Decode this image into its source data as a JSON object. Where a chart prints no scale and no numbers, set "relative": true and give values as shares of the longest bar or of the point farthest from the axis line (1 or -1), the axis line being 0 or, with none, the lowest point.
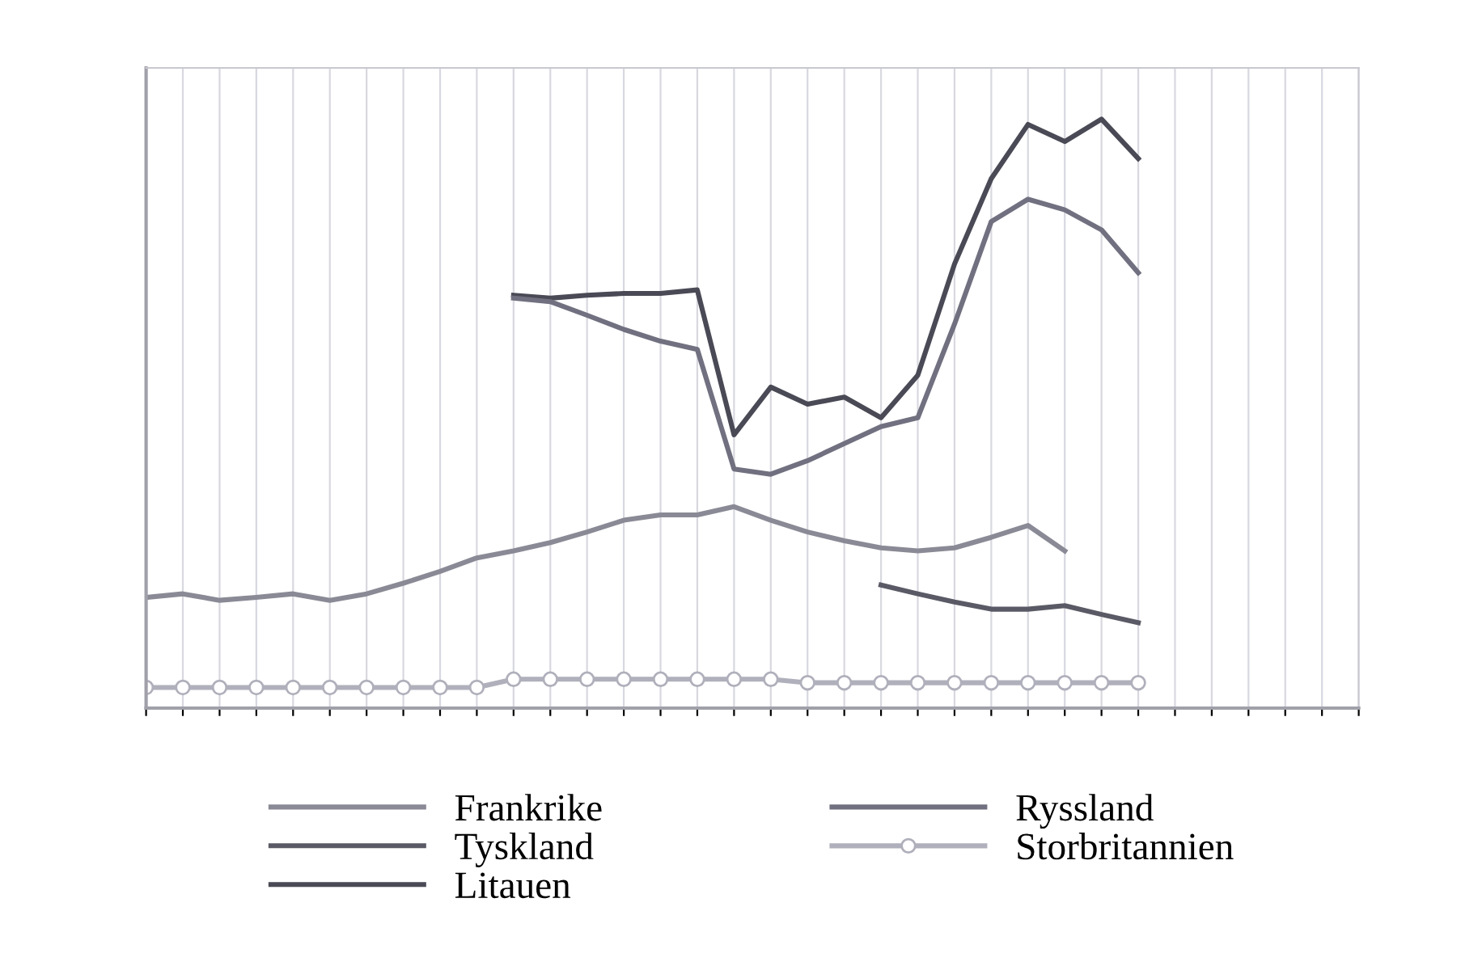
{
  "chart_data": {
    "type": "line",
    "relative": true,
    "grid": true,
    "legend": "bottom",
    "categories": [
      null,
      null,
      null,
      null,
      null,
      null,
      null,
      null,
      null,
      null,
      null,
      null,
      null,
      null,
      null,
      null,
      null,
      null,
      null,
      null,
      null,
      null,
      null,
      null,
      null,
      null,
      null,
      null,
      null,
      null,
      null,
      null,
      null,
      null
    ],
    "series": [
      {
        "name": "Frankrike",
        "color": "#8a8a96",
        "values": [
          0.188,
          0.194,
          0.183,
          0.188,
          0.194,
          0.183,
          0.194,
          0.212,
          0.232,
          0.255,
          0.267,
          0.281,
          0.299,
          0.319,
          0.328,
          0.328,
          0.342,
          0.319,
          0.299,
          0.284,
          0.272,
          0.267,
          0.272,
          0.29,
          0.31,
          0.267,
          null,
          null,
          null,
          null,
          null,
          null,
          null,
          null
        ]
      },
      {
        "name": "Tyskland",
        "color": "#5a5a66",
        "values": [
          null,
          null,
          null,
          null,
          null,
          null,
          null,
          null,
          null,
          null,
          null,
          null,
          null,
          null,
          null,
          null,
          null,
          null,
          null,
          null,
          0.209,
          0.194,
          0.18,
          0.168,
          0.168,
          0.174,
          0.159,
          0.145,
          null,
          null,
          null,
          null,
          null,
          null
        ]
      },
      {
        "name": "Litauen",
        "color": "#4a4a56",
        "values": [
          null,
          null,
          null,
          null,
          null,
          null,
          null,
          null,
          null,
          null,
          0.701,
          0.696,
          0.701,
          0.704,
          0.704,
          0.71,
          0.464,
          0.545,
          0.516,
          0.528,
          0.493,
          0.565,
          0.754,
          0.899,
          0.991,
          0.962,
          1.0,
          0.933,
          null,
          null,
          null,
          null,
          null,
          null
        ]
      },
      {
        "name": "Ryssland",
        "color": "#707080",
        "values": [
          null,
          null,
          null,
          null,
          null,
          null,
          null,
          null,
          null,
          null,
          0.696,
          0.69,
          0.667,
          0.643,
          0.623,
          0.609,
          0.406,
          0.397,
          0.42,
          0.449,
          0.478,
          0.493,
          0.652,
          0.826,
          0.864,
          0.846,
          0.812,
          0.739,
          null,
          null,
          null,
          null,
          null,
          null
        ]
      },
      {
        "name": "Storbritannien",
        "color": "#b0b0bc",
        "marker": "circle",
        "values": [
          0.035,
          0.035,
          0.035,
          0.035,
          0.035,
          0.035,
          0.035,
          0.035,
          0.035,
          0.035,
          0.049,
          0.049,
          0.049,
          0.049,
          0.049,
          0.049,
          0.049,
          0.049,
          0.043,
          0.043,
          0.043,
          0.043,
          0.043,
          0.043,
          0.043,
          0.043,
          0.043,
          0.043,
          null,
          null,
          null,
          null,
          null,
          null
        ]
      }
    ]
  }
}
